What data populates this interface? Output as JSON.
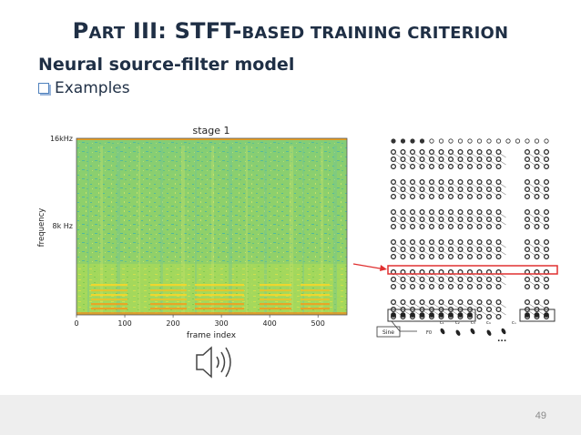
{
  "slide": {
    "title_initial_1": "P",
    "title_small_1": "ART",
    "title_main": " III: STFT-",
    "title_small_2": "BASED TRAINING CRITERION",
    "subtitle": "Neural source-filter model",
    "bullet": "Examples",
    "page_number": "49"
  },
  "colors": {
    "title": "#1f2f45",
    "bullet_box": "#4f81bd",
    "highlight_box": "#e03030",
    "spectrogram_floor": "#7ec84e",
    "spectrogram_low": "#f2c40c",
    "spectrogram_noise": "#4fb7a0"
  },
  "spectrogram": {
    "title": "stage 1",
    "ylabel": "frequency",
    "xlabel": "frame index",
    "yticks": [
      "16kHz",
      "8k Hz"
    ],
    "xticks": [
      "0",
      "100",
      "200",
      "300",
      "400",
      "500"
    ],
    "xlim": [
      0,
      560
    ]
  },
  "network": {
    "source_label": "Sine",
    "f0_label": "F0",
    "ellipsis": "...",
    "input_labels": [
      "c₁",
      "c₂",
      "c₃",
      "c₄"
    ],
    "last_label": "cₙ"
  },
  "icons": {
    "speaker": "speaker-icon"
  }
}
